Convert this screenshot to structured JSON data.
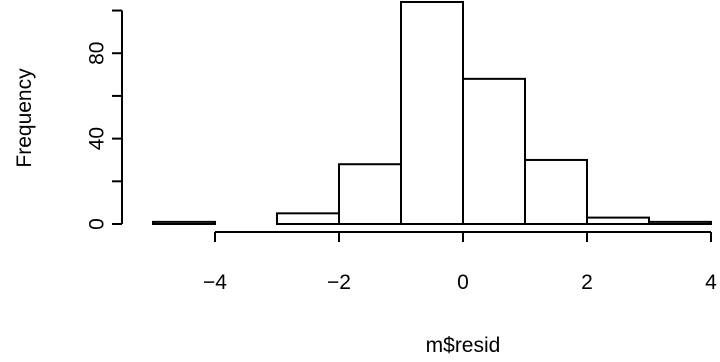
{
  "chart_data": {
    "type": "bar",
    "histogram": true,
    "xlabel": "m$resid",
    "ylabel": "Frequency",
    "bins": [
      {
        "x0": -5,
        "x1": -4,
        "value": 1
      },
      {
        "x0": -4,
        "x1": -3,
        "value": 0
      },
      {
        "x0": -3,
        "x1": -2,
        "value": 5
      },
      {
        "x0": -2,
        "x1": -1,
        "value": 28
      },
      {
        "x0": -1,
        "x1": 0,
        "value": 104
      },
      {
        "x0": 0,
        "x1": 1,
        "value": 68
      },
      {
        "x0": 1,
        "x1": 2,
        "value": 30
      },
      {
        "x0": 2,
        "x1": 3,
        "value": 3
      },
      {
        "x0": 3,
        "x1": 4,
        "value": 1
      }
    ],
    "xticks": [
      -4,
      -2,
      0,
      2,
      4
    ],
    "xtick_labels": [
      "−4",
      "−2",
      "0",
      "2",
      "4"
    ],
    "yticks": [
      0,
      20,
      40,
      60,
      80,
      100
    ],
    "ytick_labels": [
      "0",
      "",
      "40",
      "",
      "80",
      ""
    ],
    "xlim": [
      -5,
      4
    ],
    "ylim": [
      0,
      104
    ],
    "grid": false,
    "colors": {
      "bar_fill": "#ffffff",
      "stroke": "#000000"
    }
  }
}
